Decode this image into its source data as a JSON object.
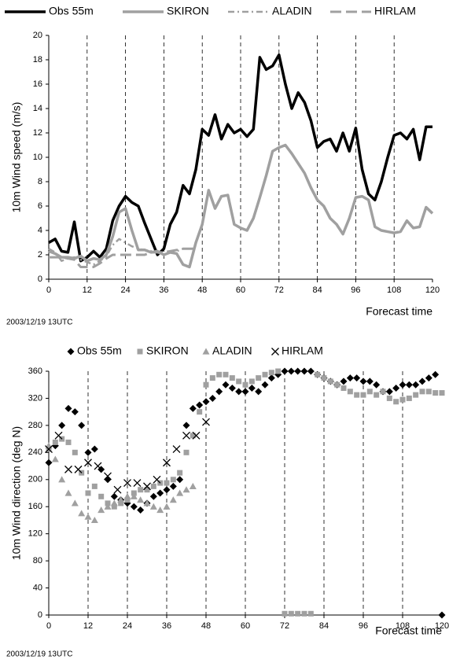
{
  "chart_data": [
    {
      "type": "line",
      "ylabel": "10m Wind speed (m/s)",
      "xlabel": "Forecast time",
      "annotation": "2003/12/19 13UTC",
      "xlim": [
        0,
        120
      ],
      "xticks": [
        0,
        12,
        24,
        36,
        48,
        60,
        72,
        84,
        96,
        108,
        120
      ],
      "ylim": [
        0,
        20
      ],
      "yticks": [
        0,
        2,
        4,
        6,
        8,
        10,
        12,
        14,
        16,
        18,
        20
      ],
      "grid": true,
      "series": [
        {
          "name": "Obs 55m",
          "color": "#000000",
          "line_style": "solid",
          "width": 3.5,
          "x": [
            0,
            2,
            4,
            6,
            8,
            10,
            12,
            14,
            16,
            18,
            20,
            22,
            24,
            26,
            28,
            30,
            32,
            34,
            36,
            38,
            40,
            42,
            44,
            46,
            48,
            50,
            52,
            54,
            56,
            58,
            60,
            62,
            64,
            66,
            68,
            70,
            72,
            74,
            76,
            78,
            80,
            82,
            84,
            86,
            88,
            90,
            92,
            94,
            96,
            98,
            100,
            102,
            104,
            106,
            108,
            110,
            112,
            114,
            116,
            118,
            120
          ],
          "values": [
            3,
            3.3,
            2.3,
            2.2,
            4.7,
            1.5,
            1.8,
            2.3,
            1.8,
            2.5,
            4.8,
            6.0,
            6.8,
            6.3,
            6.0,
            4.6,
            3.3,
            2.0,
            2.5,
            4.5,
            5.5,
            7.7,
            7.0,
            9.0,
            12.3,
            11.8,
            13.5,
            11.5,
            12.7,
            12.0,
            12.3,
            11.7,
            12.3,
            18.2,
            17.2,
            17.5,
            18.4,
            16.0,
            14.0,
            15.3,
            14.5,
            13.0,
            10.8,
            11.3,
            11.5,
            10.5,
            12.0,
            10.5,
            12.4,
            9.0,
            7.0,
            6.5,
            8.0,
            10.0,
            11.8,
            12.0,
            11.5,
            12.3,
            9.8,
            12.5,
            12.5
          ]
        },
        {
          "name": "SKIRON",
          "color": "#a0a0a0",
          "line_style": "solid",
          "width": 3.5,
          "x": [
            0,
            2,
            4,
            6,
            8,
            10,
            12,
            14,
            16,
            18,
            20,
            22,
            24,
            26,
            28,
            30,
            32,
            34,
            36,
            38,
            40,
            42,
            44,
            46,
            48,
            50,
            52,
            54,
            56,
            58,
            60,
            62,
            64,
            66,
            68,
            70,
            72,
            74,
            76,
            78,
            80,
            82,
            84,
            86,
            88,
            90,
            92,
            94,
            96,
            98,
            100,
            102,
            104,
            106,
            108,
            110,
            112,
            114,
            116,
            118,
            120
          ],
          "values": [
            2.3,
            2.1,
            1.8,
            1.8,
            1.7,
            1.9,
            1.5,
            1.7,
            1.6,
            2.0,
            3.5,
            5.5,
            5.8,
            4.0,
            2.4,
            2.4,
            2.2,
            2.3,
            2.0,
            2.2,
            2.1,
            1.2,
            1.0,
            3.0,
            4.5,
            7.3,
            5.8,
            6.8,
            6.9,
            4.5,
            4.2,
            4.0,
            5.0,
            6.7,
            8.5,
            10.5,
            10.8,
            11.0,
            10.3,
            9.5,
            8.7,
            7.5,
            6.5,
            6.0,
            5.0,
            4.5,
            3.7,
            5.0,
            6.7,
            6.8,
            6.5,
            4.3,
            4.0,
            3.9,
            3.8,
            3.9,
            4.8,
            4.2,
            4.3,
            5.9,
            5.4
          ]
        },
        {
          "name": "ALADIN",
          "color": "#a0a0a0",
          "line_style": "dashdot",
          "width": 2.5,
          "x": [
            0,
            2,
            4,
            6,
            8,
            10,
            12,
            14,
            16,
            18,
            20,
            22,
            24,
            26,
            28,
            30,
            32,
            34,
            36,
            38,
            40,
            42,
            44
          ],
          "values": [
            2.5,
            2.2,
            1.5,
            1.7,
            1.8,
            1.6,
            1.4,
            1.2,
            1.5,
            1.9,
            2.8,
            3.3,
            3.0,
            2.7,
            2.5,
            2.4,
            2.3,
            2.2,
            2.0,
            2.2,
            2.3,
            2.5,
            2.5
          ]
        },
        {
          "name": "HIRLAM",
          "color": "#a0a0a0",
          "line_style": "longdash",
          "width": 3,
          "x": [
            0,
            2,
            4,
            6,
            8,
            10,
            12,
            14,
            16,
            18,
            20,
            22,
            24,
            26,
            28,
            30,
            32,
            34,
            36,
            38,
            40,
            42,
            44,
            46
          ],
          "values": [
            1.8,
            1.8,
            1.8,
            1.7,
            1.6,
            1.0,
            1.0,
            1.0,
            1.3,
            1.7,
            2.0,
            2.0,
            2.0,
            2.0,
            2.0,
            2.0,
            2.2,
            2.2,
            2.2,
            2.3,
            2.4,
            2.5,
            2.5,
            2.5
          ]
        }
      ]
    },
    {
      "type": "scatter",
      "ylabel": "10m Wind direction (deg N)",
      "xlabel": "Forecast time",
      "annotation": "2003/12/19 13UTC",
      "xlim": [
        0,
        120
      ],
      "xticks": [
        0,
        12,
        24,
        36,
        48,
        60,
        72,
        84,
        96,
        108,
        120
      ],
      "ylim": [
        0,
        360
      ],
      "yticks": [
        0,
        40,
        80,
        120,
        160,
        200,
        240,
        280,
        320,
        360
      ],
      "grid": true,
      "series": [
        {
          "name": "Obs 55m",
          "color": "#000000",
          "marker": "diamond",
          "x": [
            0,
            2,
            4,
            6,
            8,
            10,
            12,
            14,
            16,
            18,
            20,
            22,
            24,
            26,
            28,
            30,
            32,
            34,
            36,
            38,
            40,
            42,
            44,
            46,
            48,
            50,
            52,
            54,
            56,
            58,
            60,
            62,
            64,
            66,
            68,
            70,
            72,
            74,
            76,
            78,
            80,
            82,
            84,
            86,
            88,
            90,
            92,
            94,
            96,
            98,
            100,
            102,
            104,
            106,
            108,
            110,
            112,
            114,
            116,
            118,
            120
          ],
          "values": [
            225,
            250,
            280,
            305,
            300,
            280,
            240,
            245,
            215,
            200,
            175,
            170,
            165,
            160,
            155,
            165,
            175,
            180,
            185,
            190,
            200,
            280,
            305,
            310,
            315,
            320,
            330,
            340,
            335,
            330,
            330,
            335,
            330,
            340,
            350,
            355,
            360,
            360,
            360,
            360,
            360,
            355,
            350,
            345,
            340,
            345,
            350,
            350,
            345,
            345,
            340,
            330,
            330,
            335,
            340,
            340,
            340,
            345,
            350,
            355,
            0
          ]
        },
        {
          "name": "SKIRON",
          "color": "#a0a0a0",
          "marker": "square",
          "x": [
            0,
            2,
            4,
            6,
            8,
            10,
            12,
            14,
            16,
            18,
            20,
            22,
            24,
            26,
            28,
            30,
            32,
            34,
            36,
            38,
            40,
            42,
            44,
            46,
            48,
            50,
            52,
            54,
            56,
            58,
            60,
            62,
            64,
            66,
            68,
            70,
            72,
            74,
            76,
            78,
            80,
            82,
            84,
            86,
            88,
            90,
            92,
            94,
            96,
            98,
            100,
            102,
            104,
            106,
            108,
            110,
            112,
            114,
            116,
            118,
            120
          ],
          "values": [
            245,
            255,
            260,
            255,
            240,
            210,
            180,
            190,
            175,
            165,
            160,
            165,
            170,
            180,
            185,
            185,
            190,
            195,
            195,
            200,
            210,
            240,
            265,
            300,
            340,
            350,
            355,
            355,
            350,
            345,
            340,
            345,
            350,
            355,
            358,
            360,
            2,
            2,
            2,
            2,
            2,
            355,
            350,
            345,
            340,
            335,
            330,
            325,
            325,
            330,
            325,
            330,
            320,
            315,
            318,
            320,
            325,
            330,
            330,
            328,
            328
          ]
        },
        {
          "name": "ALADIN",
          "color": "#a0a0a0",
          "marker": "triangle",
          "x": [
            0,
            2,
            4,
            6,
            8,
            10,
            12,
            14,
            16,
            18,
            20,
            22,
            24,
            26,
            28,
            30,
            32,
            34,
            36,
            38,
            40,
            42,
            44
          ],
          "values": [
            250,
            230,
            200,
            180,
            165,
            150,
            145,
            140,
            155,
            160,
            165,
            170,
            175,
            175,
            170,
            165,
            160,
            155,
            160,
            170,
            180,
            185,
            190
          ]
        },
        {
          "name": "HIRLAM",
          "color": "#000000",
          "marker": "x",
          "x": [
            0,
            3,
            6,
            9,
            12,
            15,
            18,
            21,
            24,
            27,
            30,
            33,
            36,
            39,
            42,
            45,
            48
          ],
          "values": [
            245,
            265,
            215,
            215,
            225,
            220,
            205,
            185,
            195,
            195,
            190,
            200,
            225,
            245,
            265,
            265,
            285
          ]
        }
      ]
    }
  ]
}
